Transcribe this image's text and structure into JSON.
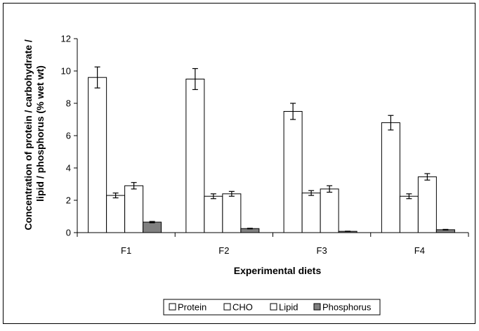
{
  "chart_data": {
    "type": "bar",
    "title": "",
    "xlabel": "Experimental diets",
    "ylabel": "Concentration of protein / carbohydrate / lipid / phosphorus (% wet wt)",
    "ylabel_lines": [
      "Concentration of protein / carbohydrate /",
      "lipid / phosphorus (% wet wt)"
    ],
    "ylim": [
      0,
      12
    ],
    "yticks": [
      0,
      2,
      4,
      6,
      8,
      10,
      12
    ],
    "categories": [
      "F1",
      "F2",
      "F3",
      "F4"
    ],
    "grid": false,
    "legend_position": "bottom",
    "series": [
      {
        "name": "Protein",
        "values": [
          9.6,
          9.5,
          7.5,
          6.8
        ],
        "errors": [
          0.65,
          0.65,
          0.5,
          0.45
        ],
        "color": "#ffffff"
      },
      {
        "name": "CHO",
        "values": [
          2.3,
          2.25,
          2.45,
          2.25
        ],
        "errors": [
          0.15,
          0.15,
          0.15,
          0.15
        ],
        "color": "#ffffff"
      },
      {
        "name": "Lipid",
        "values": [
          2.9,
          2.4,
          2.7,
          3.45
        ],
        "errors": [
          0.2,
          0.15,
          0.2,
          0.2
        ],
        "color": "#ffffff"
      },
      {
        "name": "Phosphorus",
        "values": [
          0.65,
          0.25,
          0.08,
          0.18
        ],
        "errors": [
          0.04,
          0.02,
          0.01,
          0.02
        ],
        "color": "#808080"
      }
    ]
  }
}
